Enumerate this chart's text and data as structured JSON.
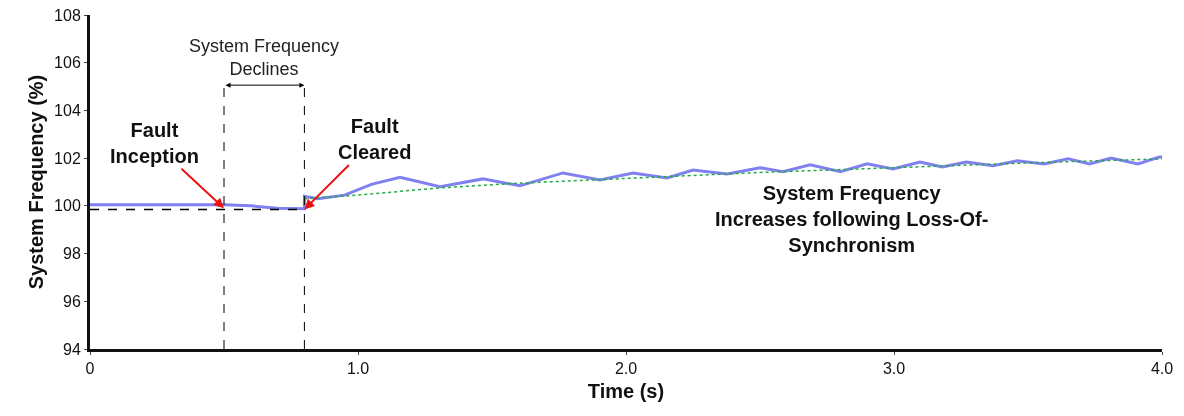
{
  "chart_data": {
    "type": "line",
    "xlabel": "Time (s)",
    "ylabel": "System Frequency (%)",
    "xlim": [
      0,
      4.0
    ],
    "xticks": [
      0,
      {
        "value": 1,
        "label": "1.0"
      },
      {
        "value": 2,
        "label": "2.0"
      },
      {
        "value": 3,
        "label": "3.0"
      },
      {
        "value": 4,
        "label": "4.0"
      }
    ],
    "ylim": [
      94,
      108
    ],
    "yticks": [
      94,
      96,
      98,
      100,
      102,
      104,
      106,
      108
    ],
    "grid": false,
    "marker": "none",
    "series": [
      {
        "color": "#8080f0",
        "line_style": "solid",
        "x": [
          0,
          0.5,
          0.6,
          0.7,
          0.8,
          0.8,
          0.85,
          0.95,
          1.05,
          1.157,
          1.306,
          1.466,
          1.604,
          1.765,
          1.903,
          2.026,
          2.153,
          2.25,
          2.377,
          2.5,
          2.586,
          2.687,
          2.8,
          2.9,
          2.996,
          3.097,
          3.18,
          3.27,
          3.37,
          3.46,
          3.56,
          3.65,
          3.73,
          3.81,
          3.91,
          3.99,
          4.0
        ],
        "values": [
          100.05,
          100.05,
          100.0,
          99.9,
          99.88,
          100.4,
          100.3,
          100.45,
          100.9,
          101.2,
          100.8,
          101.13,
          100.84,
          101.38,
          101.09,
          101.38,
          101.17,
          101.5,
          101.34,
          101.6,
          101.43,
          101.72,
          101.43,
          101.76,
          101.55,
          101.84,
          101.63,
          101.84,
          101.68,
          101.89,
          101.76,
          101.97,
          101.76,
          102.0,
          101.76,
          102.05,
          102.05
        ]
      },
      {
        "color": "#22aa44",
        "line_style": "dotted",
        "x": [
          0.8,
          1.0,
          1.3,
          1.6,
          2.0,
          2.5,
          3.0,
          3.5,
          4.0
        ],
        "values": [
          100.3,
          100.45,
          100.75,
          100.95,
          101.15,
          101.4,
          101.6,
          101.8,
          101.97
        ]
      },
      {
        "color": "#000000",
        "line_style": "dashed",
        "x": [
          0,
          0.8
        ],
        "values": [
          99.85,
          99.85
        ]
      }
    ],
    "ref_lines": [
      {
        "axis": "x",
        "value": 0.5,
        "color": "#000000",
        "line_style": "dashed"
      },
      {
        "axis": "x",
        "value": 0.8,
        "color": "#000000",
        "line_style": "dashed"
      }
    ],
    "annotations": [
      {
        "text": "Fault\nInception",
        "x": 0.5,
        "y": 99.9
      },
      {
        "text": "Fault\nCleared",
        "x": 0.8,
        "y": 99.85
      },
      "System Frequency\nDeclines",
      "System Frequency\nIncreases following Loss-Of-\nSynchronism"
    ]
  }
}
